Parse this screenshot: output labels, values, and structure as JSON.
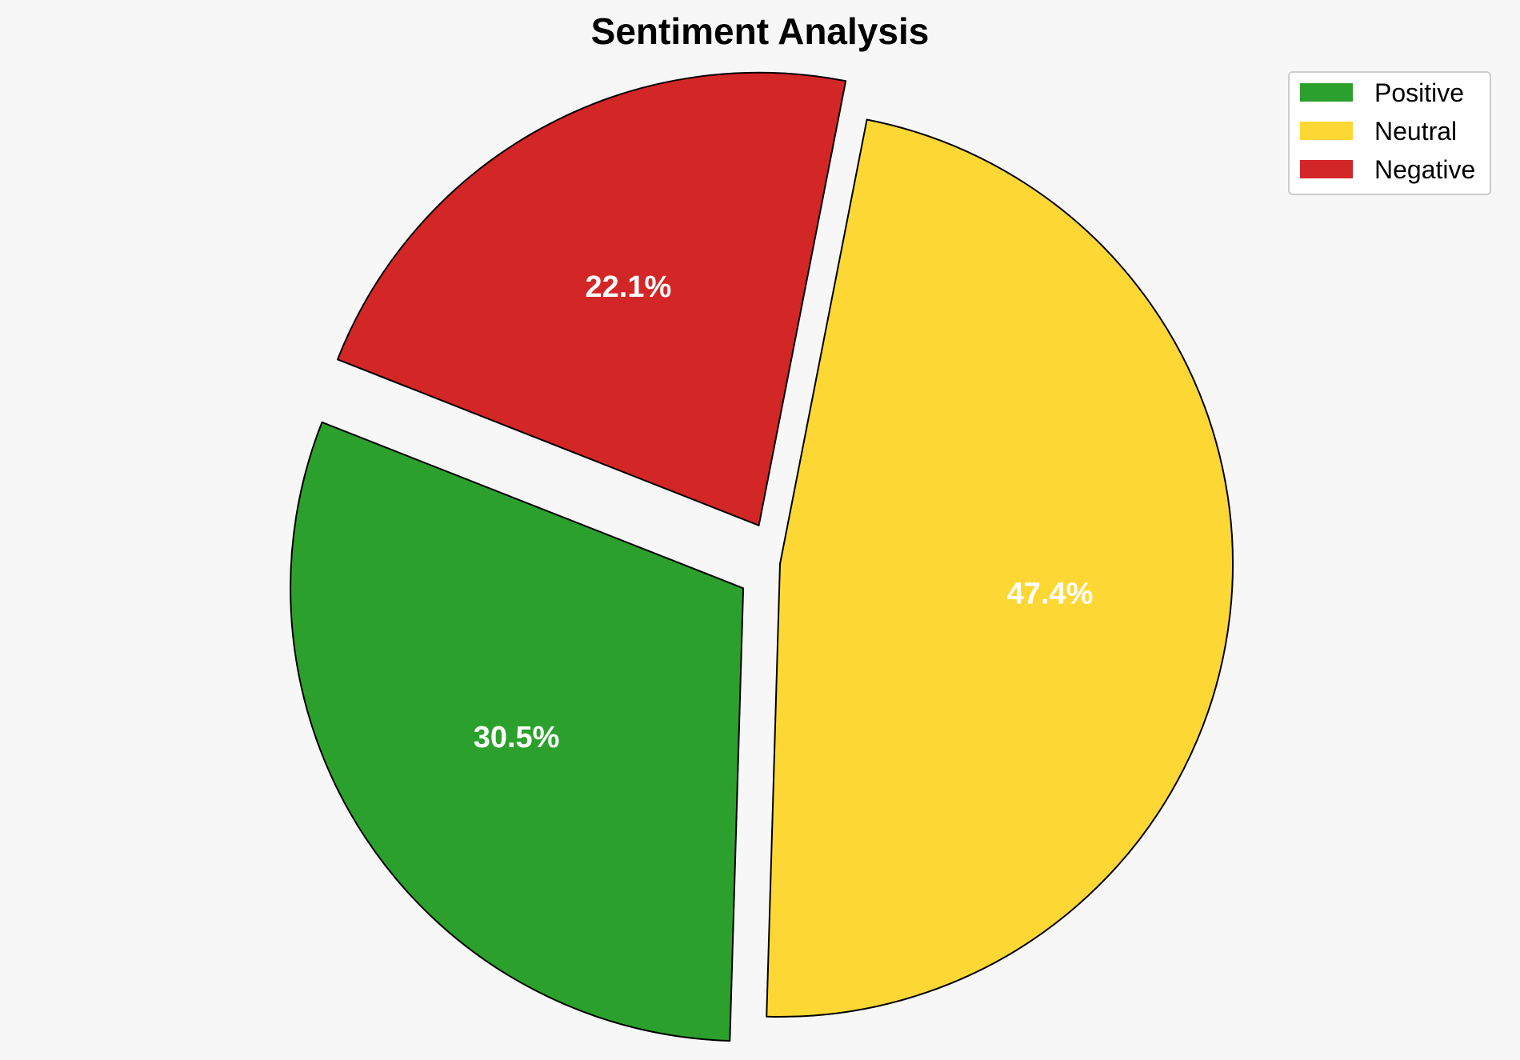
{
  "chart_data": {
    "type": "pie",
    "title": "Sentiment Analysis",
    "categories": [
      "Positive",
      "Neutral",
      "Negative"
    ],
    "values": [
      30.5,
      47.4,
      22.1
    ],
    "value_labels": [
      "30.5%",
      "47.4%",
      "22.1%"
    ],
    "colors": [
      "#2ca02c",
      "#fdd835",
      "#d32627"
    ],
    "exploded": [
      true,
      false,
      true
    ],
    "legend": {
      "placement": "top-right",
      "entries": [
        "Positive",
        "Neutral",
        "Negative"
      ]
    }
  }
}
